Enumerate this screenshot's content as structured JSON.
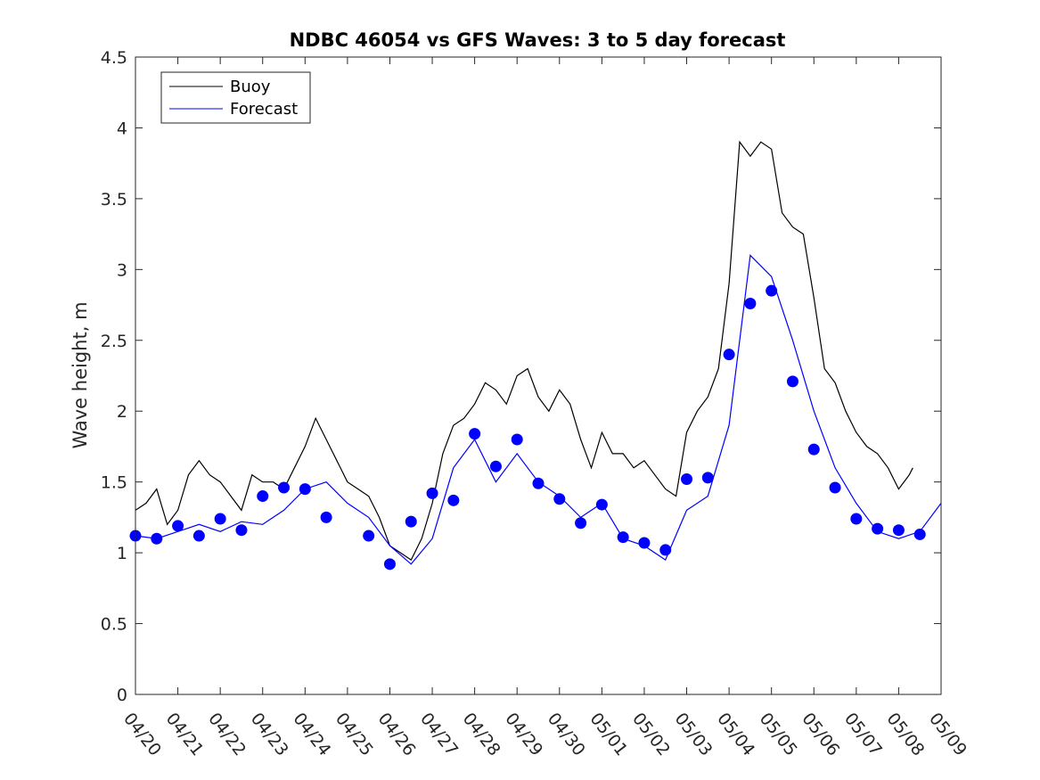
{
  "chart_data": {
    "type": "line",
    "title": "NDBC 46054 vs GFS Waves: 3 to 5 day forecast",
    "xlabel": "",
    "ylabel": "Wave height, m",
    "xlim": [
      "04/20",
      "05/09"
    ],
    "ylim": [
      0,
      4.5
    ],
    "grid": false,
    "legend_position": "top-left",
    "x_tick_labels": [
      "04/20",
      "04/21",
      "04/22",
      "04/23",
      "04/24",
      "04/25",
      "04/26",
      "04/27",
      "04/28",
      "04/29",
      "04/30",
      "05/01",
      "05/02",
      "05/03",
      "05/04",
      "05/05",
      "05/06",
      "05/07",
      "05/08",
      "05/09"
    ],
    "y_tick_labels": [
      "0",
      "0.5",
      "1",
      "1.5",
      "2",
      "2.5",
      "3",
      "3.5",
      "4",
      "4.5"
    ],
    "y_ticks": [
      0,
      0.5,
      1,
      1.5,
      2,
      2.5,
      3,
      3.5,
      4,
      4.5
    ],
    "colors": {
      "buoy": "#000000",
      "forecast": "#0000ff",
      "analysis_marker": "#0000ff"
    },
    "series": [
      {
        "name": "Buoy",
        "color": "#000000",
        "points": [
          [
            "04/20",
            1.3
          ],
          [
            "04/20 06:00",
            1.35
          ],
          [
            "04/20 12:00",
            1.45
          ],
          [
            "04/20 18:00",
            1.2
          ],
          [
            "04/21",
            1.3
          ],
          [
            "04/21 06:00",
            1.55
          ],
          [
            "04/21 12:00",
            1.65
          ],
          [
            "04/21 18:00",
            1.55
          ],
          [
            "04/22",
            1.5
          ],
          [
            "04/22 06:00",
            1.4
          ],
          [
            "04/22 12:00",
            1.3
          ],
          [
            "04/22 18:00",
            1.55
          ],
          [
            "04/23",
            1.5
          ],
          [
            "04/23 06:00",
            1.5
          ],
          [
            "04/23 12:00",
            1.45
          ],
          [
            "04/23 18:00",
            1.6
          ],
          [
            "04/24",
            1.75
          ],
          [
            "04/24 06:00",
            1.95
          ],
          [
            "04/24 12:00",
            1.8
          ],
          [
            "04/24 18:00",
            1.65
          ],
          [
            "04/25",
            1.5
          ],
          [
            "04/25 06:00",
            1.45
          ],
          [
            "04/25 12:00",
            1.4
          ],
          [
            "04/25 18:00",
            1.25
          ],
          [
            "04/26",
            1.05
          ],
          [
            "04/26 06:00",
            1.0
          ],
          [
            "04/26 12:00",
            0.95
          ],
          [
            "04/26 18:00",
            1.1
          ],
          [
            "04/27",
            1.35
          ],
          [
            "04/27 06:00",
            1.7
          ],
          [
            "04/27 12:00",
            1.9
          ],
          [
            "04/27 18:00",
            1.95
          ],
          [
            "04/28",
            2.05
          ],
          [
            "04/28 06:00",
            2.2
          ],
          [
            "04/28 12:00",
            2.15
          ],
          [
            "04/28 18:00",
            2.05
          ],
          [
            "04/29",
            2.25
          ],
          [
            "04/29 06:00",
            2.3
          ],
          [
            "04/29 12:00",
            2.1
          ],
          [
            "04/29 18:00",
            2.0
          ],
          [
            "04/30",
            2.15
          ],
          [
            "04/30 06:00",
            2.05
          ],
          [
            "04/30 12:00",
            1.8
          ],
          [
            "04/30 18:00",
            1.6
          ],
          [
            "05/01",
            1.85
          ],
          [
            "05/01 06:00",
            1.7
          ],
          [
            "05/01 12:00",
            1.7
          ],
          [
            "05/01 18:00",
            1.6
          ],
          [
            "05/02",
            1.65
          ],
          [
            "05/02 06:00",
            1.55
          ],
          [
            "05/02 12:00",
            1.45
          ],
          [
            "05/02 18:00",
            1.4
          ],
          [
            "05/03",
            1.85
          ],
          [
            "05/03 06:00",
            2.0
          ],
          [
            "05/03 12:00",
            2.1
          ],
          [
            "05/03 18:00",
            2.3
          ],
          [
            "05/04",
            2.9
          ],
          [
            "05/04 06:00",
            3.9
          ],
          [
            "05/04 12:00",
            3.8
          ],
          [
            "05/04 18:00",
            3.9
          ],
          [
            "05/05",
            3.85
          ],
          [
            "05/05 06:00",
            3.4
          ],
          [
            "05/05 12:00",
            3.3
          ],
          [
            "05/05 18:00",
            3.25
          ],
          [
            "05/06",
            2.8
          ],
          [
            "05/06 06:00",
            2.3
          ],
          [
            "05/06 12:00",
            2.2
          ],
          [
            "05/06 18:00",
            2.0
          ],
          [
            "05/07",
            1.85
          ],
          [
            "05/07 06:00",
            1.75
          ],
          [
            "05/07 12:00",
            1.7
          ],
          [
            "05/07 18:00",
            1.6
          ],
          [
            "05/08",
            1.45
          ],
          [
            "05/08 06:00",
            1.55
          ],
          [
            "05/08 08:00",
            1.6
          ]
        ]
      },
      {
        "name": "Forecast",
        "color": "#0000ff",
        "points": [
          [
            "04/20",
            1.12
          ],
          [
            "04/20 12:00",
            1.1
          ],
          [
            "04/21",
            1.15
          ],
          [
            "04/21 12:00",
            1.2
          ],
          [
            "04/22",
            1.15
          ],
          [
            "04/22 12:00",
            1.22
          ],
          [
            "04/23",
            1.2
          ],
          [
            "04/23 12:00",
            1.3
          ],
          [
            "04/24",
            1.45
          ],
          [
            "04/24 12:00",
            1.5
          ],
          [
            "04/25",
            1.35
          ],
          [
            "04/25 12:00",
            1.25
          ],
          [
            "04/26",
            1.05
          ],
          [
            "04/26 12:00",
            0.92
          ],
          [
            "04/27",
            1.1
          ],
          [
            "04/27 12:00",
            1.6
          ],
          [
            "04/28",
            1.8
          ],
          [
            "04/28 12:00",
            1.5
          ],
          [
            "04/29",
            1.7
          ],
          [
            "04/29 12:00",
            1.5
          ],
          [
            "04/30",
            1.4
          ],
          [
            "04/30 12:00",
            1.25
          ],
          [
            "05/01",
            1.35
          ],
          [
            "05/01 12:00",
            1.1
          ],
          [
            "05/02",
            1.05
          ],
          [
            "05/02 12:00",
            0.95
          ],
          [
            "05/03",
            1.3
          ],
          [
            "05/03 12:00",
            1.4
          ],
          [
            "05/04",
            1.9
          ],
          [
            "05/04 12:00",
            3.1
          ],
          [
            "05/05",
            2.95
          ],
          [
            "05/05 12:00",
            2.5
          ],
          [
            "05/06",
            2.0
          ],
          [
            "05/06 12:00",
            1.6
          ],
          [
            "05/07",
            1.35
          ],
          [
            "05/07 12:00",
            1.15
          ],
          [
            "05/08",
            1.1
          ],
          [
            "05/08 12:00",
            1.15
          ],
          [
            "05/09",
            1.35
          ]
        ]
      },
      {
        "name": "",
        "color": "#0000ff",
        "markers": true,
        "points": [
          [
            "04/20",
            1.12
          ],
          [
            "04/20 12:00",
            1.1
          ],
          [
            "04/21",
            1.19
          ],
          [
            "04/21 12:00",
            1.12
          ],
          [
            "04/22",
            1.24
          ],
          [
            "04/22 12:00",
            1.16
          ],
          [
            "04/23",
            1.4
          ],
          [
            "04/23 12:00",
            1.46
          ],
          [
            "04/24",
            1.45
          ],
          [
            "04/24 12:00",
            1.25
          ],
          [
            "04/25 12:00",
            1.12
          ],
          [
            "04/26",
            0.92
          ],
          [
            "04/26 12:00",
            1.22
          ],
          [
            "04/27",
            1.42
          ],
          [
            "04/27 12:00",
            1.37
          ],
          [
            "04/28",
            1.84
          ],
          [
            "04/28 12:00",
            1.61
          ],
          [
            "04/29",
            1.8
          ],
          [
            "04/29 12:00",
            1.49
          ],
          [
            "04/30",
            1.38
          ],
          [
            "04/30 12:00",
            1.21
          ],
          [
            "05/01",
            1.34
          ],
          [
            "05/01 12:00",
            1.11
          ],
          [
            "05/02",
            1.07
          ],
          [
            "05/02 12:00",
            1.02
          ],
          [
            "05/03",
            1.52
          ],
          [
            "05/03 12:00",
            1.53
          ],
          [
            "05/04",
            2.4
          ],
          [
            "05/04 12:00",
            2.76
          ],
          [
            "05/05",
            2.85
          ],
          [
            "05/05 12:00",
            2.21
          ],
          [
            "05/06",
            1.73
          ],
          [
            "05/06 12:00",
            1.46
          ],
          [
            "05/07",
            1.24
          ],
          [
            "05/07 12:00",
            1.17
          ],
          [
            "05/08",
            1.16
          ],
          [
            "05/08 12:00",
            1.13
          ]
        ]
      }
    ]
  }
}
